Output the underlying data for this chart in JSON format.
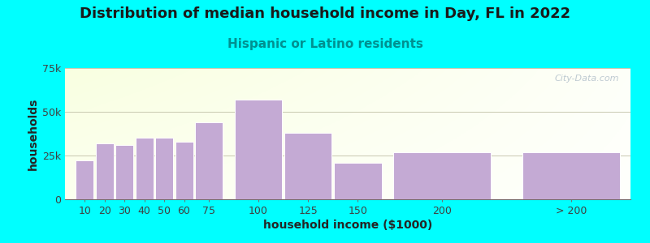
{
  "title": "Distribution of median household income in Day, FL in 2022",
  "subtitle": "Hispanic or Latino residents",
  "xlabel": "household income ($1000)",
  "ylabel": "households",
  "background_color": "#00ffff",
  "bar_color": "#c4aad4",
  "bar_edge_color": "#ffffff",
  "categories": [
    "10",
    "20",
    "30",
    "40",
    "50",
    "60",
    "75",
    "100",
    "125",
    "150",
    "200",
    "> 200"
  ],
  "values": [
    22000,
    32000,
    31000,
    35000,
    35000,
    33000,
    44000,
    57000,
    38000,
    21000,
    27000,
    27000
  ],
  "bar_widths": [
    10,
    10,
    10,
    10,
    10,
    10,
    15,
    25,
    25,
    25,
    50,
    50
  ],
  "bar_lefts": [
    5,
    15,
    25,
    35,
    45,
    55,
    65,
    85,
    110,
    135,
    165,
    230
  ],
  "xlim": [
    0,
    285
  ],
  "ylim": [
    0,
    75000
  ],
  "ytick_labels": [
    "0",
    "25k",
    "50k",
    "75k"
  ],
  "ytick_values": [
    0,
    25000,
    50000,
    75000
  ],
  "title_fontsize": 13,
  "subtitle_fontsize": 11,
  "subtitle_color": "#009090",
  "axis_label_fontsize": 10,
  "tick_fontsize": 9,
  "watermark": "City-Data.com"
}
